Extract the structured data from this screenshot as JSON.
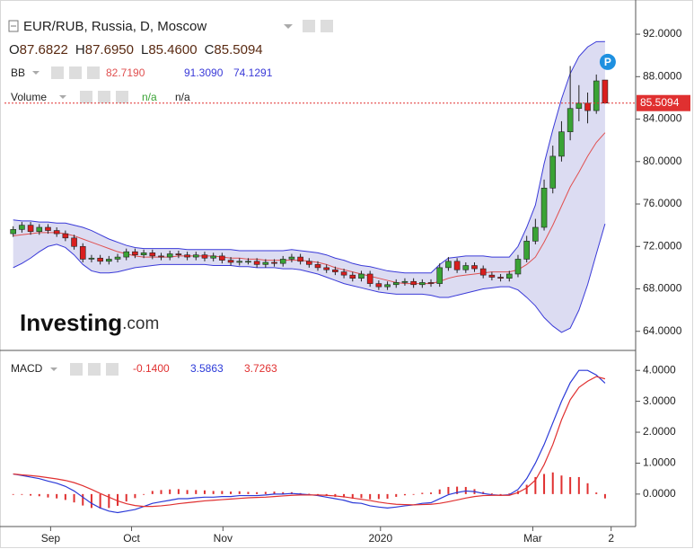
{
  "chart_data": [
    {
      "type": "candlestick",
      "title": "EUR/RUB, Russia, D, Moscow",
      "ohlc_letters": [
        "O",
        "H",
        "L",
        "C"
      ],
      "xlim": [
        -1,
        71
      ],
      "xticks": [
        {
          "value": 4.3,
          "label": "Sep"
        },
        {
          "value": 13.6,
          "label": "Oct"
        },
        {
          "value": 24.1,
          "label": "Nov"
        },
        {
          "value": 42.2,
          "label": "2020"
        },
        {
          "value": 59.7,
          "label": "Mar"
        },
        {
          "value": 68.7,
          "label": "2"
        }
      ],
      "ylim": [
        62.2,
        94.8
      ],
      "yticks": [
        {
          "value": 64,
          "label": "64.0000"
        },
        {
          "value": 68,
          "label": "68.0000"
        },
        {
          "value": 72,
          "label": "72.0000"
        },
        {
          "value": 76,
          "label": "76.0000"
        },
        {
          "value": 80,
          "label": "80.0000"
        },
        {
          "value": 84,
          "label": "84.0000"
        },
        {
          "value": 88,
          "label": "88.0000"
        },
        {
          "value": 92,
          "label": "92.0000"
        }
      ],
      "grid": false,
      "candles": {
        "up_color": "#3aa335",
        "down_color": "#d91e1e",
        "price_line_color": "#e03030",
        "last_labels": {
          "open": "87.6822",
          "high": "87.6950",
          "low": "85.4600",
          "close": "85.5094"
        },
        "open": [
          73.2,
          73.6,
          74.0,
          73.4,
          73.8,
          73.5,
          73.2,
          72.8,
          72.0,
          70.8,
          70.9,
          70.6,
          70.8,
          71.0,
          71.5,
          71.2,
          71.4,
          71.1,
          71.0,
          71.3,
          71.2,
          71.0,
          71.2,
          70.9,
          71.1,
          70.7,
          70.5,
          70.6,
          70.6,
          70.3,
          70.5,
          70.4,
          70.8,
          71.0,
          70.6,
          70.3,
          70.0,
          69.8,
          69.6,
          69.3,
          69.0,
          69.4,
          68.5,
          68.2,
          68.4,
          68.6,
          68.7,
          68.4,
          68.6,
          68.5,
          70.0,
          70.6,
          69.8,
          70.2,
          69.9,
          69.3,
          69.1,
          69.0,
          69.4,
          70.8,
          72.5,
          73.8,
          77.5,
          80.5,
          82.8,
          85.0,
          85.5,
          84.8,
          87.6822
        ],
        "high": [
          73.9,
          74.3,
          74.3,
          74.1,
          74.1,
          73.8,
          73.5,
          73.1,
          72.3,
          71.2,
          71.2,
          71.1,
          71.3,
          71.8,
          71.8,
          71.7,
          71.7,
          71.4,
          71.6,
          71.6,
          71.5,
          71.5,
          71.5,
          71.4,
          71.4,
          71.0,
          70.9,
          70.9,
          70.9,
          70.8,
          70.8,
          71.1,
          71.3,
          71.3,
          70.9,
          70.6,
          70.3,
          70.1,
          69.9,
          69.6,
          69.7,
          69.7,
          68.8,
          68.7,
          68.9,
          69.0,
          69.0,
          68.9,
          68.9,
          70.4,
          71.0,
          70.9,
          70.5,
          70.5,
          70.2,
          69.6,
          69.4,
          69.7,
          71.2,
          73.0,
          74.6,
          78.3,
          81.5,
          83.8,
          89.0,
          87.2,
          86.5,
          88.2,
          87.695
        ],
        "low": [
          72.9,
          73.3,
          73.1,
          73.1,
          73.2,
          72.9,
          72.5,
          71.7,
          70.5,
          70.5,
          70.3,
          70.3,
          70.5,
          70.7,
          70.9,
          70.9,
          70.8,
          70.7,
          70.7,
          70.9,
          70.7,
          70.7,
          70.6,
          70.6,
          70.4,
          70.2,
          70.2,
          70.3,
          70.0,
          70.0,
          70.1,
          70.1,
          70.5,
          70.3,
          70.0,
          69.7,
          69.5,
          69.3,
          69.0,
          68.7,
          68.7,
          68.2,
          67.9,
          67.9,
          68.1,
          68.3,
          68.1,
          68.1,
          68.2,
          68.2,
          69.7,
          69.5,
          69.5,
          69.6,
          69.0,
          68.8,
          68.7,
          68.7,
          69.1,
          70.5,
          72.2,
          73.5,
          77.0,
          80.0,
          82.0,
          83.8,
          83.6,
          84.5,
          85.46
        ],
        "close": [
          73.6,
          74.0,
          73.4,
          73.8,
          73.5,
          73.2,
          72.8,
          72.0,
          70.8,
          70.9,
          70.6,
          70.8,
          71.0,
          71.5,
          71.2,
          71.4,
          71.1,
          71.0,
          71.3,
          71.2,
          71.0,
          71.2,
          70.9,
          71.1,
          70.7,
          70.5,
          70.6,
          70.6,
          70.3,
          70.5,
          70.4,
          70.8,
          71.0,
          70.6,
          70.3,
          70.0,
          69.8,
          69.6,
          69.3,
          69.0,
          69.4,
          68.5,
          68.2,
          68.4,
          68.6,
          68.7,
          68.4,
          68.6,
          68.5,
          70.0,
          70.6,
          69.8,
          70.2,
          69.9,
          69.3,
          69.1,
          69.0,
          69.4,
          70.8,
          72.5,
          73.8,
          77.5,
          80.5,
          82.8,
          85.0,
          85.5,
          84.8,
          87.6,
          85.5094
        ]
      },
      "bands": {
        "name": "BB",
        "fill": "#dcdcf2",
        "middle": {
          "color": "#e05050",
          "legend_label": "82.7190",
          "values": [
            73.0,
            73.1,
            73.2,
            73.3,
            73.3,
            73.3,
            73.2,
            73.0,
            72.7,
            72.4,
            72.1,
            71.8,
            71.5,
            71.3,
            71.1,
            71.0,
            71.0,
            71.0,
            71.0,
            71.1,
            71.1,
            71.1,
            71.1,
            71.1,
            71.0,
            70.9,
            70.9,
            70.8,
            70.8,
            70.7,
            70.7,
            70.7,
            70.7,
            70.7,
            70.6,
            70.5,
            70.3,
            70.0,
            69.8,
            69.6,
            69.4,
            69.2,
            69.0,
            68.8,
            68.6,
            68.5,
            68.5,
            68.5,
            68.5,
            68.7,
            69.0,
            69.2,
            69.3,
            69.4,
            69.5,
            69.6,
            69.6,
            69.6,
            69.8,
            70.3,
            71.0,
            72.4,
            74.0,
            75.8,
            77.6,
            79.0,
            80.5,
            81.8,
            82.719
          ]
        },
        "upper": {
          "color": "#3a3ad8",
          "legend_label": "91.3090",
          "values": [
            74.5,
            74.4,
            74.4,
            74.3,
            74.3,
            74.2,
            74.2,
            74.0,
            73.8,
            73.5,
            73.1,
            72.7,
            72.4,
            72.1,
            71.9,
            71.8,
            71.8,
            71.8,
            71.8,
            71.8,
            71.7,
            71.7,
            71.7,
            71.7,
            71.7,
            71.7,
            71.6,
            71.6,
            71.6,
            71.6,
            71.6,
            71.6,
            71.7,
            71.6,
            71.5,
            71.4,
            71.2,
            70.9,
            70.7,
            70.4,
            70.2,
            70.1,
            69.9,
            69.7,
            69.6,
            69.5,
            69.5,
            69.5,
            69.5,
            70.3,
            70.9,
            71.0,
            71.1,
            71.1,
            71.1,
            71.0,
            71.0,
            71.0,
            72.0,
            73.8,
            75.9,
            79.8,
            83.0,
            85.9,
            88.3,
            89.9,
            90.8,
            91.3,
            91.309
          ]
        },
        "lower": {
          "color": "#3a3ad8",
          "legend_label": "74.1291",
          "values": [
            70.0,
            70.4,
            70.9,
            71.5,
            72.0,
            72.2,
            71.9,
            71.2,
            70.3,
            69.7,
            69.5,
            69.5,
            69.6,
            69.8,
            70.0,
            70.1,
            70.2,
            70.3,
            70.3,
            70.3,
            70.3,
            70.3,
            70.3,
            70.2,
            70.2,
            70.2,
            70.1,
            70.1,
            70.0,
            70.0,
            70.0,
            69.9,
            69.9,
            69.8,
            69.6,
            69.4,
            69.1,
            68.8,
            68.5,
            68.3,
            68.1,
            67.9,
            67.7,
            67.6,
            67.5,
            67.5,
            67.5,
            67.5,
            67.4,
            67.2,
            67.2,
            67.4,
            67.6,
            67.8,
            68.0,
            68.1,
            68.2,
            68.2,
            67.9,
            67.2,
            66.4,
            65.3,
            64.5,
            63.9,
            64.3,
            66.0,
            68.4,
            71.3,
            74.1291
          ]
        }
      },
      "volume": {
        "name": "Volume",
        "legend_texts": [
          "n/a",
          "n/a"
        ]
      },
      "watermark": [
        "Investing",
        ".com"
      ],
      "badge": "P"
    },
    {
      "type": "macd",
      "name": "MACD",
      "xlim": [
        -1,
        71
      ],
      "ylim": [
        -1.05,
        4.5
      ],
      "yticks": [
        {
          "value": 0,
          "label": "0.0000"
        },
        {
          "value": 1,
          "label": "1.0000"
        },
        {
          "value": 2,
          "label": "2.0000"
        },
        {
          "value": 3,
          "label": "3.0000"
        },
        {
          "value": 4,
          "label": "4.0000"
        }
      ],
      "series": [
        {
          "kind": "histogram",
          "color": "#e03030",
          "legend_label": "-0.1400",
          "values": [
            0,
            -0.02,
            -0.05,
            -0.07,
            -0.11,
            -0.14,
            -0.19,
            -0.27,
            -0.37,
            -0.45,
            -0.47,
            -0.45,
            -0.38,
            -0.24,
            -0.13,
            0,
            0.1,
            0.13,
            0.15,
            0.16,
            0.13,
            0.13,
            0.12,
            0.1,
            0.1,
            0.08,
            0.09,
            0.07,
            0.06,
            0.07,
            0.08,
            0.06,
            0.06,
            0.03,
            0.01,
            -0.02,
            -0.06,
            -0.09,
            -0.11,
            -0.15,
            -0.13,
            -0.17,
            -0.16,
            -0.15,
            -0.09,
            -0.04,
            0,
            0.04,
            0.05,
            0.15,
            0.23,
            0.24,
            0.23,
            0.16,
            0.07,
            0.02,
            0,
            0.02,
            0.1,
            0.3,
            0.55,
            0.65,
            0.7,
            0.6,
            0.55,
            0.55,
            0.35,
            0.05,
            -0.14
          ]
        },
        {
          "kind": "line",
          "color": "#2b3ad8",
          "legend_label": "3.5863",
          "values": [
            0.65,
            0.6,
            0.55,
            0.5,
            0.42,
            0.35,
            0.25,
            0.1,
            -0.1,
            -0.3,
            -0.45,
            -0.55,
            -0.6,
            -0.55,
            -0.5,
            -0.4,
            -0.3,
            -0.25,
            -0.2,
            -0.15,
            -0.15,
            -0.12,
            -0.1,
            -0.1,
            -0.08,
            -0.08,
            -0.05,
            -0.05,
            -0.05,
            -0.03,
            0,
            0,
            0.02,
            0,
            -0.02,
            -0.05,
            -0.1,
            -0.15,
            -0.2,
            -0.28,
            -0.3,
            -0.38,
            -0.42,
            -0.45,
            -0.42,
            -0.38,
            -0.35,
            -0.3,
            -0.28,
            -0.15,
            -0.02,
            0.05,
            0.1,
            0.08,
            0.02,
            -0.02,
            -0.04,
            -0.02,
            0.15,
            0.5,
            1.0,
            1.6,
            2.3,
            3.0,
            3.6,
            4.0,
            4.0,
            3.85,
            3.5863
          ]
        },
        {
          "kind": "line",
          "color": "#e03030",
          "legend_label": "3.7263",
          "values": [
            0.65,
            0.62,
            0.6,
            0.57,
            0.53,
            0.49,
            0.44,
            0.37,
            0.27,
            0.15,
            0.02,
            -0.1,
            -0.22,
            -0.31,
            -0.37,
            -0.4,
            -0.4,
            -0.38,
            -0.35,
            -0.31,
            -0.28,
            -0.25,
            -0.22,
            -0.2,
            -0.18,
            -0.16,
            -0.14,
            -0.12,
            -0.11,
            -0.1,
            -0.08,
            -0.06,
            -0.04,
            -0.03,
            -0.03,
            -0.03,
            -0.04,
            -0.06,
            -0.09,
            -0.13,
            -0.17,
            -0.21,
            -0.26,
            -0.3,
            -0.33,
            -0.34,
            -0.35,
            -0.34,
            -0.33,
            -0.3,
            -0.25,
            -0.19,
            -0.13,
            -0.08,
            -0.05,
            -0.04,
            -0.04,
            -0.04,
            0.05,
            0.2,
            0.45,
            0.95,
            1.6,
            2.4,
            3.05,
            3.45,
            3.65,
            3.8,
            3.7263
          ]
        }
      ]
    }
  ]
}
